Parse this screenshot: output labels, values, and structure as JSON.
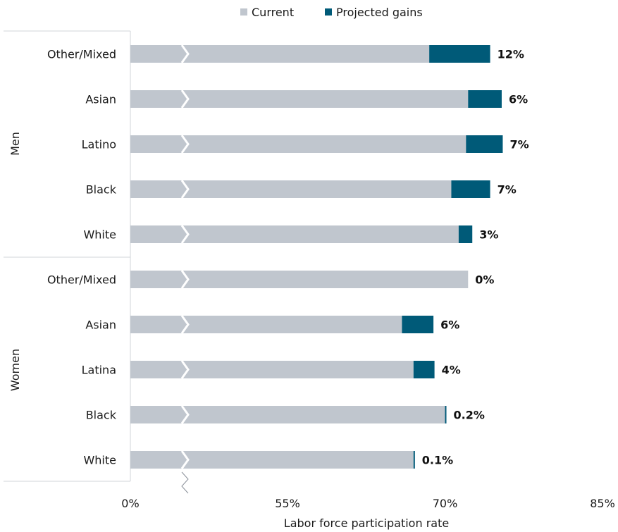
{
  "chart_data": {
    "type": "bar",
    "orientation": "horizontal",
    "stacked": true,
    "xlabel": "Labor force participation rate",
    "x_ticks": [
      "0%",
      "55%",
      "70%",
      "85%"
    ],
    "axis_break": true,
    "legend": [
      "Current",
      "Projected gains"
    ],
    "legend_position": "top",
    "groups": [
      {
        "name": "Men",
        "categories": [
          {
            "label": "Other/Mixed",
            "current": 68.5,
            "gain": 5.8,
            "gain_label": "12%"
          },
          {
            "label": "Asian",
            "current": 72.2,
            "gain": 3.2,
            "gain_label": "6%"
          },
          {
            "label": "Latino",
            "current": 72.0,
            "gain": 3.5,
            "gain_label": "7%"
          },
          {
            "label": "Black",
            "current": 70.6,
            "gain": 3.7,
            "gain_label": "7%"
          },
          {
            "label": "White",
            "current": 71.3,
            "gain": 1.3,
            "gain_label": "3%"
          }
        ]
      },
      {
        "name": "Women",
        "categories": [
          {
            "label": "Other/Mixed",
            "current": 72.2,
            "gain": 0.0,
            "gain_label": "0%"
          },
          {
            "label": "Asian",
            "current": 65.9,
            "gain": 3.0,
            "gain_label": "6%"
          },
          {
            "label": "Latina",
            "current": 67.0,
            "gain": 2.0,
            "gain_label": "4%"
          },
          {
            "label": "Black",
            "current": 70.0,
            "gain": 0.1,
            "gain_label": "0.2%"
          },
          {
            "label": "White",
            "current": 67.0,
            "gain": 0.1,
            "gain_label": "0.1%"
          }
        ]
      }
    ],
    "colors": {
      "current": "#c0c6ce",
      "gain": "#005a78"
    }
  }
}
